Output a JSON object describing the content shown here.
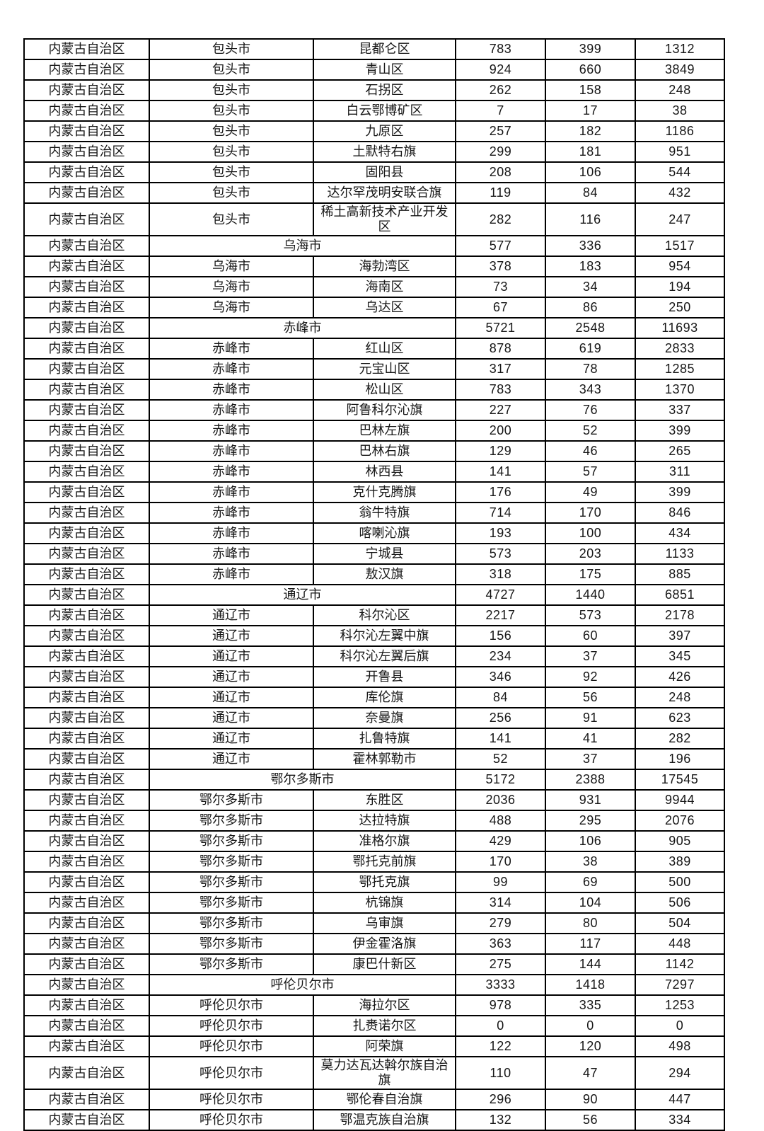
{
  "page": {
    "background_color": "#ffffff",
    "border_color": "#000000",
    "text_color": "#161616",
    "description_note": "Continuation page of a statistics table for Inner Mongolia Autonomous Region: province, city, district/banner, and three numeric value columns. No header row visible on this page."
  },
  "table": {
    "rows": [
      {
        "province": "内蒙古自治区",
        "city": "包头市",
        "merged": false,
        "district": "昆都仑区",
        "values": [
          "783",
          "399",
          "1312"
        ]
      },
      {
        "province": "内蒙古自治区",
        "city": "包头市",
        "merged": false,
        "district": "青山区",
        "values": [
          "924",
          "660",
          "3849"
        ]
      },
      {
        "province": "内蒙古自治区",
        "city": "包头市",
        "merged": false,
        "district": "石拐区",
        "values": [
          "262",
          "158",
          "248"
        ]
      },
      {
        "province": "内蒙古自治区",
        "city": "包头市",
        "merged": false,
        "district": "白云鄂博矿区",
        "values": [
          "7",
          "17",
          "38"
        ]
      },
      {
        "province": "内蒙古自治区",
        "city": "包头市",
        "merged": false,
        "district": "九原区",
        "values": [
          "257",
          "182",
          "1186"
        ]
      },
      {
        "province": "内蒙古自治区",
        "city": "包头市",
        "merged": false,
        "district": "土默特右旗",
        "values": [
          "299",
          "181",
          "951"
        ]
      },
      {
        "province": "内蒙古自治区",
        "city": "包头市",
        "merged": false,
        "district": "固阳县",
        "values": [
          "208",
          "106",
          "544"
        ]
      },
      {
        "province": "内蒙古自治区",
        "city": "包头市",
        "merged": false,
        "district": "达尔罕茂明安联合旗",
        "values": [
          "119",
          "84",
          "432"
        ]
      },
      {
        "province": "内蒙古自治区",
        "city": "包头市",
        "merged": false,
        "district": "稀土高新技术产业开发区",
        "values": [
          "282",
          "116",
          "247"
        ]
      },
      {
        "province": "内蒙古自治区",
        "city": "乌海市",
        "merged": true,
        "district": null,
        "values": [
          "577",
          "336",
          "1517"
        ]
      },
      {
        "province": "内蒙古自治区",
        "city": "乌海市",
        "merged": false,
        "district": "海勃湾区",
        "values": [
          "378",
          "183",
          "954"
        ]
      },
      {
        "province": "内蒙古自治区",
        "city": "乌海市",
        "merged": false,
        "district": "海南区",
        "values": [
          "73",
          "34",
          "194"
        ]
      },
      {
        "province": "内蒙古自治区",
        "city": "乌海市",
        "merged": false,
        "district": "乌达区",
        "values": [
          "67",
          "86",
          "250"
        ]
      },
      {
        "province": "内蒙古自治区",
        "city": "赤峰市",
        "merged": true,
        "district": null,
        "values": [
          "5721",
          "2548",
          "11693"
        ]
      },
      {
        "province": "内蒙古自治区",
        "city": "赤峰市",
        "merged": false,
        "district": "红山区",
        "values": [
          "878",
          "619",
          "2833"
        ]
      },
      {
        "province": "内蒙古自治区",
        "city": "赤峰市",
        "merged": false,
        "district": "元宝山区",
        "values": [
          "317",
          "78",
          "1285"
        ]
      },
      {
        "province": "内蒙古自治区",
        "city": "赤峰市",
        "merged": false,
        "district": "松山区",
        "values": [
          "783",
          "343",
          "1370"
        ]
      },
      {
        "province": "内蒙古自治区",
        "city": "赤峰市",
        "merged": false,
        "district": "阿鲁科尔沁旗",
        "values": [
          "227",
          "76",
          "337"
        ]
      },
      {
        "province": "内蒙古自治区",
        "city": "赤峰市",
        "merged": false,
        "district": "巴林左旗",
        "values": [
          "200",
          "52",
          "399"
        ]
      },
      {
        "province": "内蒙古自治区",
        "city": "赤峰市",
        "merged": false,
        "district": "巴林右旗",
        "values": [
          "129",
          "46",
          "265"
        ]
      },
      {
        "province": "内蒙古自治区",
        "city": "赤峰市",
        "merged": false,
        "district": "林西县",
        "values": [
          "141",
          "57",
          "311"
        ]
      },
      {
        "province": "内蒙古自治区",
        "city": "赤峰市",
        "merged": false,
        "district": "克什克腾旗",
        "values": [
          "176",
          "49",
          "399"
        ]
      },
      {
        "province": "内蒙古自治区",
        "city": "赤峰市",
        "merged": false,
        "district": "翁牛特旗",
        "values": [
          "714",
          "170",
          "846"
        ]
      },
      {
        "province": "内蒙古自治区",
        "city": "赤峰市",
        "merged": false,
        "district": "喀喇沁旗",
        "values": [
          "193",
          "100",
          "434"
        ]
      },
      {
        "province": "内蒙古自治区",
        "city": "赤峰市",
        "merged": false,
        "district": "宁城县",
        "values": [
          "573",
          "203",
          "1133"
        ]
      },
      {
        "province": "内蒙古自治区",
        "city": "赤峰市",
        "merged": false,
        "district": "敖汉旗",
        "values": [
          "318",
          "175",
          "885"
        ]
      },
      {
        "province": "内蒙古自治区",
        "city": "通辽市",
        "merged": true,
        "district": null,
        "values": [
          "4727",
          "1440",
          "6851"
        ]
      },
      {
        "province": "内蒙古自治区",
        "city": "通辽市",
        "merged": false,
        "district": "科尔沁区",
        "values": [
          "2217",
          "573",
          "2178"
        ]
      },
      {
        "province": "内蒙古自治区",
        "city": "通辽市",
        "merged": false,
        "district": "科尔沁左翼中旗",
        "values": [
          "156",
          "60",
          "397"
        ]
      },
      {
        "province": "内蒙古自治区",
        "city": "通辽市",
        "merged": false,
        "district": "科尔沁左翼后旗",
        "values": [
          "234",
          "37",
          "345"
        ]
      },
      {
        "province": "内蒙古自治区",
        "city": "通辽市",
        "merged": false,
        "district": "开鲁县",
        "values": [
          "346",
          "92",
          "426"
        ]
      },
      {
        "province": "内蒙古自治区",
        "city": "通辽市",
        "merged": false,
        "district": "库伦旗",
        "values": [
          "84",
          "56",
          "248"
        ]
      },
      {
        "province": "内蒙古自治区",
        "city": "通辽市",
        "merged": false,
        "district": "奈曼旗",
        "values": [
          "256",
          "91",
          "623"
        ]
      },
      {
        "province": "内蒙古自治区",
        "city": "通辽市",
        "merged": false,
        "district": "扎鲁特旗",
        "values": [
          "141",
          "41",
          "282"
        ]
      },
      {
        "province": "内蒙古自治区",
        "city": "通辽市",
        "merged": false,
        "district": "霍林郭勒市",
        "values": [
          "52",
          "37",
          "196"
        ]
      },
      {
        "province": "内蒙古自治区",
        "city": "鄂尔多斯市",
        "merged": true,
        "district": null,
        "values": [
          "5172",
          "2388",
          "17545"
        ]
      },
      {
        "province": "内蒙古自治区",
        "city": "鄂尔多斯市",
        "merged": false,
        "district": "东胜区",
        "values": [
          "2036",
          "931",
          "9944"
        ]
      },
      {
        "province": "内蒙古自治区",
        "city": "鄂尔多斯市",
        "merged": false,
        "district": "达拉特旗",
        "values": [
          "488",
          "295",
          "2076"
        ]
      },
      {
        "province": "内蒙古自治区",
        "city": "鄂尔多斯市",
        "merged": false,
        "district": "准格尔旗",
        "values": [
          "429",
          "106",
          "905"
        ]
      },
      {
        "province": "内蒙古自治区",
        "city": "鄂尔多斯市",
        "merged": false,
        "district": "鄂托克前旗",
        "values": [
          "170",
          "38",
          "389"
        ]
      },
      {
        "province": "内蒙古自治区",
        "city": "鄂尔多斯市",
        "merged": false,
        "district": "鄂托克旗",
        "values": [
          "99",
          "69",
          "500"
        ]
      },
      {
        "province": "内蒙古自治区",
        "city": "鄂尔多斯市",
        "merged": false,
        "district": "杭锦旗",
        "values": [
          "314",
          "104",
          "506"
        ]
      },
      {
        "province": "内蒙古自治区",
        "city": "鄂尔多斯市",
        "merged": false,
        "district": "乌审旗",
        "values": [
          "279",
          "80",
          "504"
        ]
      },
      {
        "province": "内蒙古自治区",
        "city": "鄂尔多斯市",
        "merged": false,
        "district": "伊金霍洛旗",
        "values": [
          "363",
          "117",
          "448"
        ]
      },
      {
        "province": "内蒙古自治区",
        "city": "鄂尔多斯市",
        "merged": false,
        "district": "康巴什新区",
        "values": [
          "275",
          "144",
          "1142"
        ]
      },
      {
        "province": "内蒙古自治区",
        "city": "呼伦贝尔市",
        "merged": true,
        "district": null,
        "values": [
          "3333",
          "1418",
          "7297"
        ]
      },
      {
        "province": "内蒙古自治区",
        "city": "呼伦贝尔市",
        "merged": false,
        "district": "海拉尔区",
        "values": [
          "978",
          "335",
          "1253"
        ]
      },
      {
        "province": "内蒙古自治区",
        "city": "呼伦贝尔市",
        "merged": false,
        "district": "扎赉诺尔区",
        "values": [
          "0",
          "0",
          "0"
        ]
      },
      {
        "province": "内蒙古自治区",
        "city": "呼伦贝尔市",
        "merged": false,
        "district": "阿荣旗",
        "values": [
          "122",
          "120",
          "498"
        ]
      },
      {
        "province": "内蒙古自治区",
        "city": "呼伦贝尔市",
        "merged": false,
        "district": "莫力达瓦达斡尔族自治旗",
        "values": [
          "110",
          "47",
          "294"
        ]
      },
      {
        "province": "内蒙古自治区",
        "city": "呼伦贝尔市",
        "merged": false,
        "district": "鄂伦春自治旗",
        "values": [
          "296",
          "90",
          "447"
        ]
      },
      {
        "province": "内蒙古自治区",
        "city": "呼伦贝尔市",
        "merged": false,
        "district": "鄂温克族自治旗",
        "values": [
          "132",
          "56",
          "334"
        ]
      }
    ]
  }
}
